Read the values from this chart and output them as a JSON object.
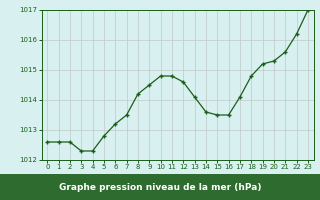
{
  "x": [
    0,
    1,
    2,
    3,
    4,
    5,
    6,
    7,
    8,
    9,
    10,
    11,
    12,
    13,
    14,
    15,
    16,
    17,
    18,
    19,
    20,
    21,
    22,
    23
  ],
  "y": [
    1012.6,
    1012.6,
    1012.6,
    1012.3,
    1012.3,
    1012.8,
    1013.2,
    1013.5,
    1014.2,
    1014.5,
    1014.8,
    1014.8,
    1014.6,
    1014.1,
    1013.6,
    1013.5,
    1013.5,
    1014.1,
    1014.8,
    1015.2,
    1015.3,
    1015.6,
    1016.2,
    1017.0
  ],
  "ylim": [
    1012,
    1017
  ],
  "yticks": [
    1012,
    1013,
    1014,
    1015,
    1016,
    1017
  ],
  "xticks": [
    0,
    1,
    2,
    3,
    4,
    5,
    6,
    7,
    8,
    9,
    10,
    11,
    12,
    13,
    14,
    15,
    16,
    17,
    18,
    19,
    20,
    21,
    22,
    23
  ],
  "xlabel": "Graphe pression niveau de la mer (hPa)",
  "line_color": "#1a5e1a",
  "marker": "+",
  "bg_color": "#d8f0f0",
  "grid_color": "#c0c8c8",
  "tick_color": "#1a5e1a",
  "xlabel_bg": "#2e6b2e",
  "xlabel_text_color": "#ffffff"
}
